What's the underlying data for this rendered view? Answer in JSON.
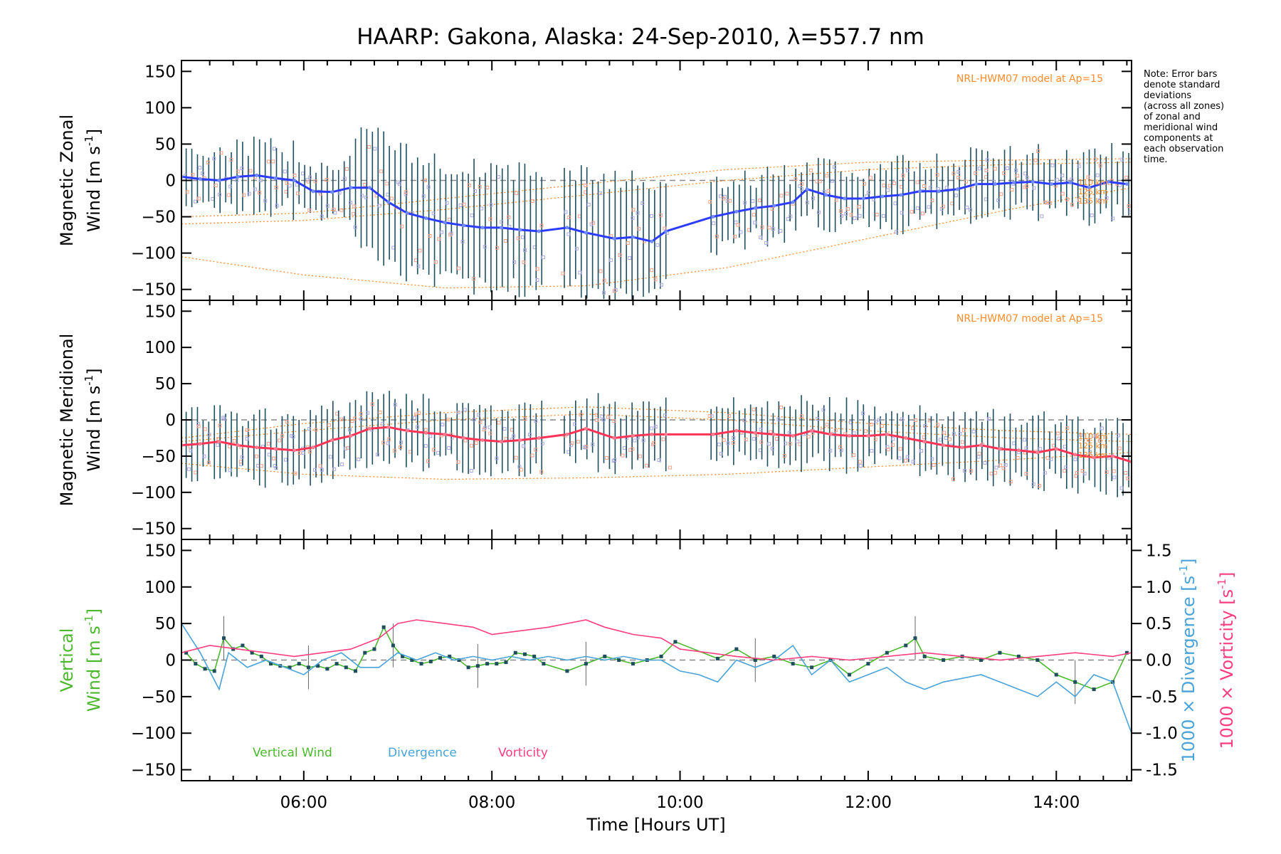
{
  "title": "HAARP: Gakona,  Alaska: 24-Sep-2010, λ=557.7 nm",
  "note_lines": [
    "Note: Error bars",
    "denote standard",
    "deviations",
    "(across all zones)",
    "of zonal and",
    "meridional wind",
    "components at",
    "each observation",
    "time."
  ],
  "colors": {
    "zonal": "#2b3cff",
    "meridional": "#ff3355",
    "vertical": "#4db82e",
    "divergence": "#4aa3d8",
    "vorticity": "#ff3d7f",
    "model": "#ff8c2a",
    "errorbar": "#1f4e5e",
    "zero": "#888888"
  },
  "chart_data": [
    {
      "type": "line",
      "panel": "zonal",
      "ylabel_line1": "Magnetic Zonal",
      "ylabel_line2": "Wind [m s",
      "ylabel_sup": "-1",
      "ylabel_close": "]",
      "model_label": "NRL-HWM07 model at Ap=15",
      "model_alt_labels": [
        "110 km",
        "125 km",
        "135 km"
      ],
      "xlim": [
        4.7,
        14.8
      ],
      "ylim": [
        -165,
        165
      ],
      "yticks": [
        -150,
        -100,
        -50,
        0,
        50,
        100,
        150
      ],
      "grid": false,
      "series": [
        {
          "x": [
            4.7,
            4.9,
            5.1,
            5.3,
            5.5,
            5.7,
            5.9,
            6.1,
            6.3,
            6.5,
            6.7,
            6.9,
            7.1,
            7.3,
            7.5,
            7.7,
            7.9,
            8.1,
            8.3,
            8.5,
            8.8,
            9.0,
            9.3,
            9.5,
            9.7,
            9.85,
            10.35,
            10.6,
            10.8,
            11.0,
            11.2,
            11.35,
            11.55,
            11.75,
            11.95,
            12.15,
            12.35,
            12.55,
            12.75,
            12.95,
            13.15,
            13.35,
            13.55,
            13.75,
            13.95,
            14.15,
            14.35,
            14.55,
            14.75
          ],
          "y": [
            5,
            2,
            0,
            5,
            7,
            3,
            0,
            -15,
            -16,
            -10,
            -10,
            -30,
            -45,
            -52,
            -58,
            -62,
            -65,
            -65,
            -68,
            -70,
            -65,
            -72,
            -80,
            -78,
            -84,
            -70,
            -50,
            -43,
            -38,
            -35,
            -30,
            -12,
            -20,
            -25,
            -25,
            -22,
            -20,
            -15,
            -15,
            -12,
            -5,
            -5,
            -3,
            -2,
            -5,
            -3,
            -10,
            -2,
            -5
          ]
        }
      ],
      "model_curves": [
        {
          "x": [
            4.7,
            6.0,
            7.5,
            9.0,
            10.5,
            12.0,
            13.5,
            14.8
          ],
          "y": [
            -50,
            -45,
            -25,
            -5,
            15,
            25,
            28,
            30
          ]
        },
        {
          "x": [
            4.7,
            6.0,
            7.5,
            9.0,
            10.5,
            12.0,
            13.5,
            14.8
          ],
          "y": [
            -60,
            -55,
            -40,
            -20,
            0,
            15,
            22,
            25
          ]
        },
        {
          "x": [
            4.7,
            6.0,
            7.5,
            9.0,
            10.5,
            12.0,
            13.5,
            14.8
          ],
          "y": [
            -105,
            -130,
            -148,
            -145,
            -120,
            -80,
            -40,
            -10
          ]
        }
      ]
    },
    {
      "type": "line",
      "panel": "meridional",
      "ylabel_line1": "Magnetic Meridional",
      "ylabel_line2": "Wind [m s",
      "ylabel_sup": "-1",
      "ylabel_close": "]",
      "model_label": "NRL-HWM07 model at Ap=15",
      "model_alt_labels": [
        "110 km",
        "125 km",
        "135 km"
      ],
      "xlim": [
        4.7,
        14.8
      ],
      "ylim": [
        -165,
        165
      ],
      "yticks": [
        -150,
        -100,
        -50,
        0,
        50,
        100,
        150
      ],
      "grid": false,
      "series": [
        {
          "x": [
            4.7,
            4.9,
            5.1,
            5.3,
            5.5,
            5.7,
            5.9,
            6.1,
            6.3,
            6.5,
            6.7,
            6.9,
            7.1,
            7.3,
            7.5,
            7.7,
            7.9,
            8.1,
            8.3,
            8.5,
            8.8,
            9.0,
            9.3,
            9.5,
            9.7,
            9.85,
            10.35,
            10.6,
            10.8,
            11.0,
            11.2,
            11.4,
            11.6,
            11.8,
            12.0,
            12.2,
            12.4,
            12.6,
            12.8,
            13.0,
            13.2,
            13.4,
            13.6,
            13.8,
            14.0,
            14.2,
            14.4,
            14.6,
            14.8
          ],
          "y": [
            -35,
            -33,
            -30,
            -35,
            -38,
            -40,
            -42,
            -38,
            -28,
            -22,
            -12,
            -10,
            -15,
            -18,
            -20,
            -25,
            -28,
            -30,
            -28,
            -25,
            -20,
            -12,
            -25,
            -22,
            -20,
            -20,
            -20,
            -15,
            -18,
            -20,
            -22,
            -15,
            -20,
            -22,
            -22,
            -20,
            -25,
            -30,
            -35,
            -38,
            -35,
            -40,
            -42,
            -45,
            -40,
            -48,
            -52,
            -50,
            -58
          ]
        }
      ],
      "model_curves": [
        {
          "x": [
            4.7,
            6.0,
            7.5,
            9.0,
            10.5,
            12.0,
            13.5,
            14.8
          ],
          "y": [
            -25,
            -5,
            10,
            18,
            10,
            -5,
            -15,
            -20
          ]
        },
        {
          "x": [
            4.7,
            6.0,
            7.5,
            9.0,
            10.5,
            12.0,
            13.5,
            14.8
          ],
          "y": [
            -30,
            -15,
            0,
            8,
            0,
            -15,
            -25,
            -30
          ]
        },
        {
          "x": [
            4.7,
            6.0,
            7.5,
            9.0,
            10.5,
            12.0,
            13.5,
            14.8
          ],
          "y": [
            -60,
            -75,
            -82,
            -80,
            -75,
            -65,
            -55,
            -45
          ]
        }
      ]
    },
    {
      "type": "line",
      "panel": "vertical",
      "ylabel_line1": "Vertical",
      "ylabel_line2": "Wind [m s",
      "ylabel_sup": "-1",
      "ylabel_close": "]",
      "y2label_div": "1000 × Divergence [s",
      "y2label_vor": "1000 × Vorticity [s",
      "y2label_sup": "-1",
      "y2label_close": "]",
      "xlim": [
        4.7,
        14.8
      ],
      "ylim": [
        -165,
        165
      ],
      "yticks": [
        -150,
        -100,
        -50,
        0,
        50,
        100,
        150
      ],
      "y2lim": [
        -1.65,
        1.65
      ],
      "y2ticks": [
        -1.5,
        -1.0,
        -0.5,
        0.0,
        0.5,
        1.0,
        1.5
      ],
      "y2ticklabels": [
        "-1.5",
        "-1.0",
        "-0.5",
        "0.0",
        "0.5",
        "1.0",
        "1.5"
      ],
      "xticks": [
        6,
        8,
        10,
        12,
        14
      ],
      "xticklabels": [
        "06:00",
        "08:00",
        "10:00",
        "12:00",
        "14:00"
      ],
      "xlabel": "Time [Hours UT]",
      "grid": false,
      "legend": [
        "Vertical Wind",
        "Divergence",
        "Vorticity"
      ],
      "series": [
        {
          "name": "Vertical Wind",
          "axis": "left",
          "x": [
            4.75,
            4.85,
            4.95,
            5.05,
            5.15,
            5.25,
            5.35,
            5.45,
            5.55,
            5.65,
            5.75,
            5.85,
            5.95,
            6.05,
            6.15,
            6.25,
            6.35,
            6.45,
            6.55,
            6.65,
            6.75,
            6.85,
            6.95,
            7.05,
            7.15,
            7.25,
            7.35,
            7.45,
            7.55,
            7.65,
            7.75,
            7.85,
            7.95,
            8.05,
            8.15,
            8.25,
            8.35,
            8.45,
            8.55,
            8.8,
            9.0,
            9.2,
            9.35,
            9.5,
            9.65,
            9.8,
            9.95,
            10.4,
            10.6,
            10.8,
            11.0,
            11.2,
            11.4,
            11.6,
            11.8,
            12.0,
            12.2,
            12.4,
            12.5,
            12.6,
            12.8,
            13.0,
            13.2,
            13.4,
            13.6,
            13.8,
            14.0,
            14.2,
            14.4,
            14.6,
            14.75
          ],
          "y": [
            10,
            -5,
            -12,
            -15,
            30,
            15,
            20,
            10,
            5,
            -5,
            -8,
            -10,
            -5,
            -10,
            -8,
            -12,
            -5,
            -10,
            -15,
            10,
            15,
            45,
            20,
            5,
            0,
            -5,
            -2,
            3,
            5,
            0,
            -10,
            -8,
            -5,
            -5,
            -3,
            10,
            8,
            5,
            -5,
            -15,
            -5,
            5,
            0,
            -5,
            0,
            5,
            25,
            2,
            15,
            0,
            5,
            -5,
            -10,
            0,
            -20,
            -5,
            10,
            20,
            30,
            5,
            0,
            5,
            0,
            10,
            5,
            0,
            -20,
            -30,
            -40,
            -30,
            10
          ]
        },
        {
          "name": "Divergence",
          "axis": "right",
          "x": [
            4.7,
            4.9,
            5.1,
            5.2,
            5.4,
            5.6,
            5.8,
            6.0,
            6.2,
            6.4,
            6.6,
            6.8,
            7.0,
            7.2,
            7.4,
            7.6,
            7.8,
            8.0,
            8.2,
            8.4,
            8.6,
            8.8,
            9.0,
            9.2,
            9.4,
            9.6,
            9.8,
            10.0,
            10.2,
            10.4,
            10.6,
            10.8,
            11.0,
            11.2,
            11.4,
            11.6,
            11.8,
            12.0,
            12.2,
            12.4,
            12.6,
            12.8,
            13.0,
            13.2,
            13.4,
            13.6,
            13.8,
            14.0,
            14.2,
            14.4,
            14.6,
            14.8
          ],
          "y": [
            0.5,
            0.1,
            -0.4,
            0.1,
            -0.1,
            0.0,
            -0.1,
            -0.2,
            0.0,
            0.1,
            -0.1,
            -0.1,
            0.1,
            0.0,
            0.1,
            0.0,
            0.05,
            0.0,
            0.05,
            0.0,
            0.05,
            0.0,
            0.05,
            0.0,
            0.05,
            0.0,
            0.0,
            -0.15,
            -0.2,
            -0.3,
            0.0,
            -0.1,
            0.0,
            0.2,
            -0.2,
            0.0,
            -0.3,
            -0.2,
            -0.1,
            -0.3,
            -0.4,
            -0.3,
            -0.25,
            -0.2,
            -0.3,
            -0.4,
            -0.5,
            -0.3,
            -0.5,
            -0.2,
            -0.3,
            -1.0
          ]
        },
        {
          "name": "Vorticity",
          "axis": "right",
          "x": [
            4.7,
            5.0,
            5.3,
            5.6,
            5.9,
            6.2,
            6.5,
            6.8,
            7.0,
            7.2,
            7.5,
            7.8,
            8.0,
            8.3,
            8.6,
            9.0,
            9.2,
            9.5,
            9.8,
            10.0,
            10.3,
            10.6,
            11.0,
            11.4,
            11.8,
            12.2,
            12.6,
            13.0,
            13.4,
            13.8,
            14.2,
            14.6,
            14.8
          ],
          "y": [
            0.1,
            0.2,
            0.15,
            0.1,
            0.05,
            0.1,
            0.15,
            0.3,
            0.5,
            0.55,
            0.5,
            0.45,
            0.35,
            0.4,
            0.45,
            0.55,
            0.45,
            0.35,
            0.3,
            0.15,
            0.1,
            0.05,
            0.0,
            0.05,
            0.0,
            0.05,
            0.1,
            0.05,
            0.0,
            0.05,
            0.1,
            0.05,
            0.1
          ]
        }
      ]
    }
  ]
}
